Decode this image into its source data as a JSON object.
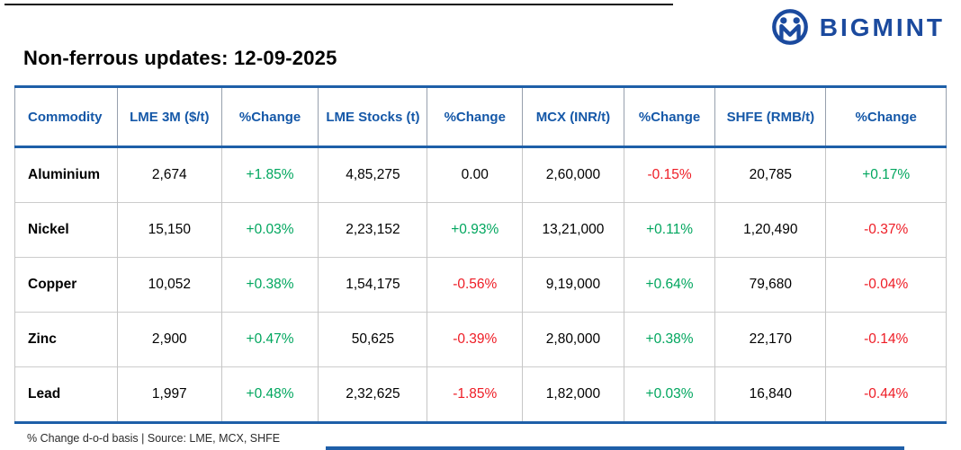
{
  "brand": {
    "logo_text": "BIGMINT"
  },
  "page": {
    "title": "Non-ferrous updates: 12-09-2025",
    "footnote": "% Change d-o-d basis | Source: LME, MCX, SHFE"
  },
  "colors": {
    "accent_blue": "#1e5fa8",
    "header_text_blue": "#1558a8",
    "brand_navy": "#1b4a9e",
    "positive_green": "#00a65e",
    "negative_red": "#ee1c25",
    "neutral_black": "#000000",
    "grid_gray": "#c6c6c6"
  },
  "chart_data": {
    "type": "table",
    "title": "Non-ferrous updates: 12-09-2025",
    "columns": [
      "Commodity",
      "LME 3M ($/t)",
      "%Change",
      "LME Stocks (t)",
      "%Change",
      "MCX (INR/t)",
      "%Change",
      "SHFE (RMB/t)",
      "%Change"
    ],
    "rows": [
      [
        "Aluminium",
        "2,674",
        "+1.85%",
        "4,85,275",
        "0.00",
        "2,60,000",
        "-0.15%",
        "20,785",
        "+0.17%"
      ],
      [
        "Nickel",
        "15,150",
        "+0.03%",
        "2,23,152",
        "+0.93%",
        "13,21,000",
        "+0.11%",
        "1,20,490",
        "-0.37%"
      ],
      [
        "Copper",
        "10,052",
        "+0.38%",
        "1,54,175",
        "-0.56%",
        "9,19,000",
        "+0.64%",
        "79,680",
        "-0.04%"
      ],
      [
        "Zinc",
        "2,900",
        "+0.47%",
        "50,625",
        "-0.39%",
        "2,80,000",
        "+0.38%",
        "22,170",
        "-0.14%"
      ],
      [
        "Lead",
        "1,997",
        "+0.48%",
        "2,32,625",
        "-1.85%",
        "1,82,000",
        "+0.03%",
        "16,840",
        "-0.44%"
      ]
    ],
    "footnote": "% Change d-o-d basis | Source: LME, MCX, SHFE"
  }
}
